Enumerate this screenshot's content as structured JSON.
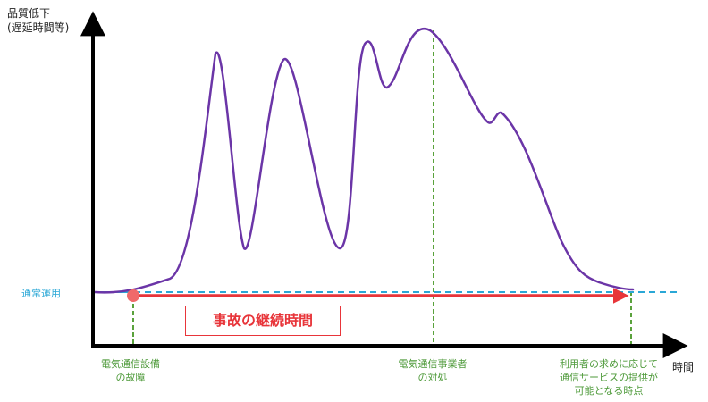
{
  "axes": {
    "y_title_lines": [
      "品質低下",
      "(遅延時間等)"
    ],
    "x_title": "時間"
  },
  "baseline": {
    "label": "通常運用",
    "color": "#2aa7d6"
  },
  "events": [
    {
      "id": "failure",
      "lines": [
        "電気通信設備",
        "の故障"
      ]
    },
    {
      "id": "operator",
      "lines": [
        "電気通信事業者",
        "の対処"
      ]
    },
    {
      "id": "recovery",
      "lines": [
        "利用者の求めに応じて",
        "通信サービスの提供が",
        "可能となる時点"
      ]
    }
  ],
  "duration": {
    "label": "事故の継続時間",
    "color": "#e8353a"
  },
  "colors": {
    "curve": "#6b35a7",
    "event_line": "#5aa23c",
    "axis": "#000000"
  }
}
